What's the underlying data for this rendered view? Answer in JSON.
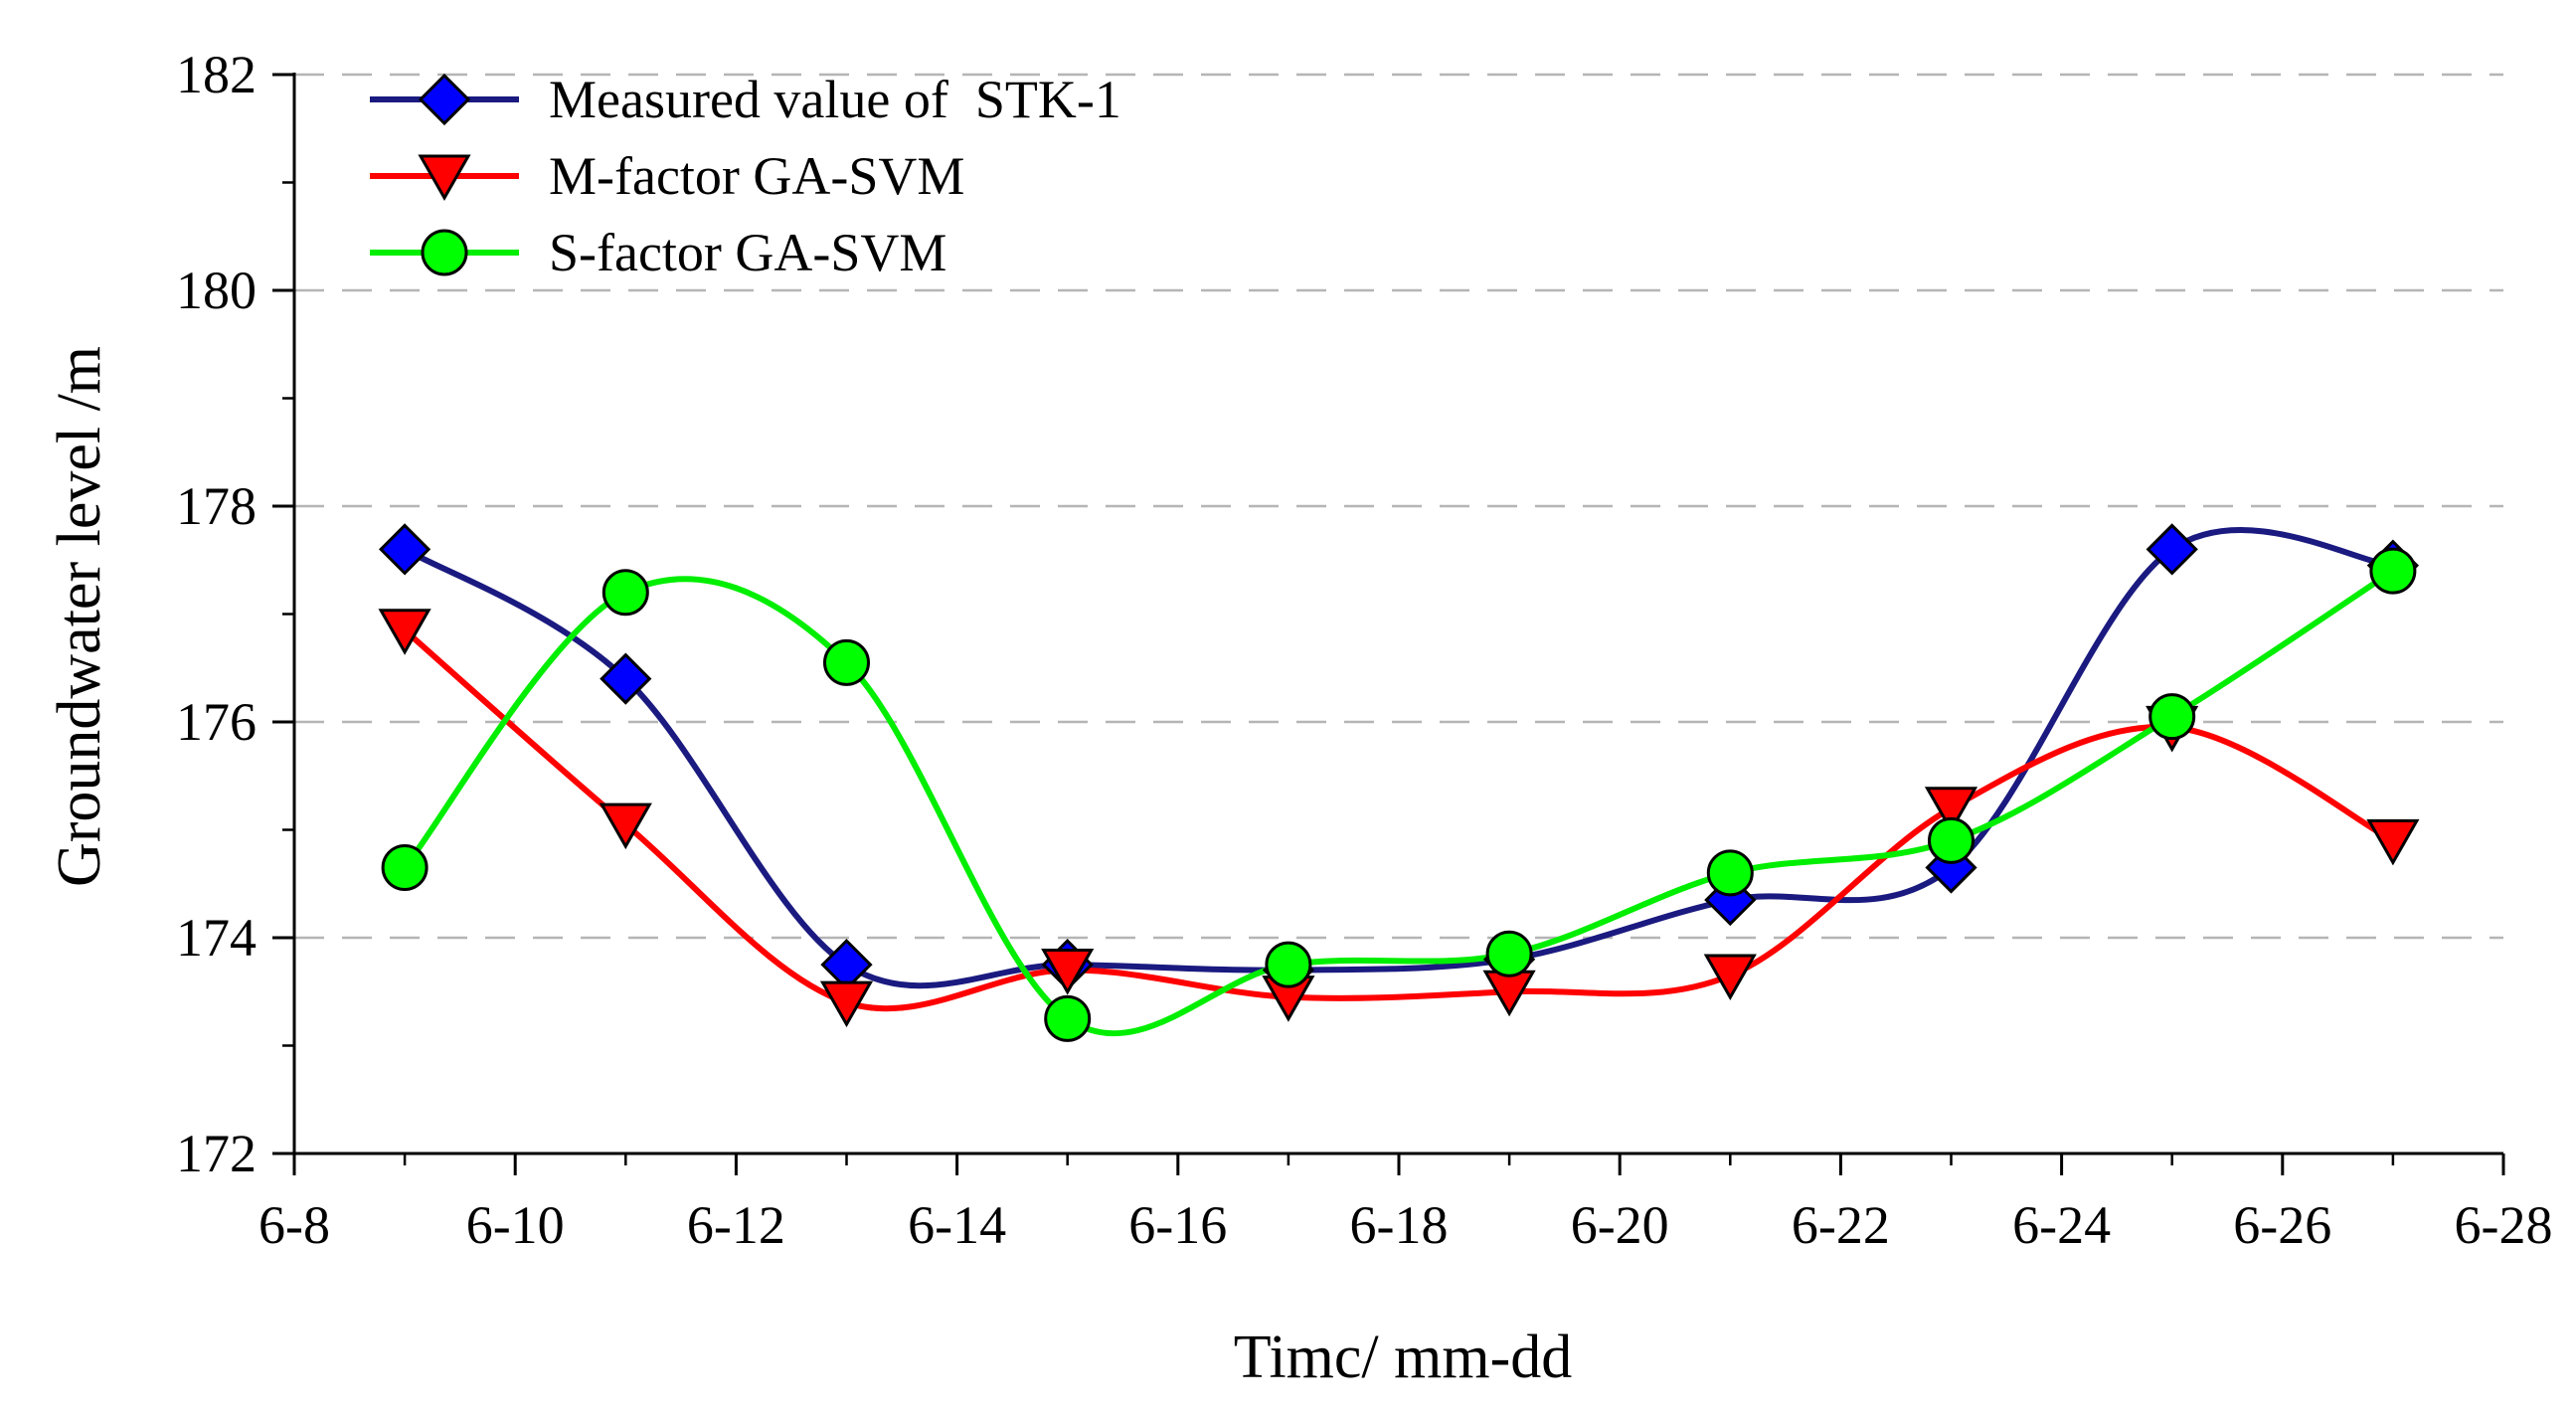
{
  "chart_data": {
    "type": "line",
    "title": "",
    "xlabel": "Timc/ mm-dd",
    "ylabel": "Groundwater level /m",
    "xlim": [
      8,
      28
    ],
    "ylim": [
      172,
      182
    ],
    "x_ticks": [
      8,
      10,
      12,
      14,
      16,
      18,
      20,
      22,
      24,
      26,
      28
    ],
    "x_tick_labels": [
      "6-8",
      "6-10",
      "6-12",
      "6-14",
      "6-16",
      "6-18",
      "6-20",
      "6-22",
      "6-24",
      "6-26",
      "6-28"
    ],
    "y_ticks": [
      172,
      174,
      176,
      178,
      180,
      182
    ],
    "y_tick_labels": [
      "172",
      "174",
      "176",
      "178",
      "180",
      "182"
    ],
    "x": [
      9,
      11,
      13,
      15,
      17,
      19,
      21,
      23,
      25,
      27
    ],
    "grid": "horizontal dashed",
    "legend_position": "top-left",
    "series": [
      {
        "name": "Measured value of  STK-1",
        "color": "#1a1a80",
        "marker": "diamond",
        "marker_color": "#0000ff",
        "values": [
          177.6,
          176.4,
          173.75,
          173.75,
          173.7,
          173.8,
          174.35,
          174.65,
          177.6,
          177.45
        ]
      },
      {
        "name": "M-factor GA-SVM",
        "color": "#ff0000",
        "marker": "triangle-down",
        "marker_color": "#ff0000",
        "values": [
          176.85,
          175.05,
          173.4,
          173.7,
          173.45,
          173.5,
          173.65,
          175.2,
          175.95,
          174.9
        ]
      },
      {
        "name": "S-factor GA-SVM",
        "color": "#00ee00",
        "marker": "circle",
        "marker_color": "#00ff00",
        "values": [
          174.65,
          177.2,
          176.55,
          173.25,
          173.75,
          173.85,
          174.6,
          174.9,
          176.05,
          177.4
        ]
      }
    ]
  }
}
